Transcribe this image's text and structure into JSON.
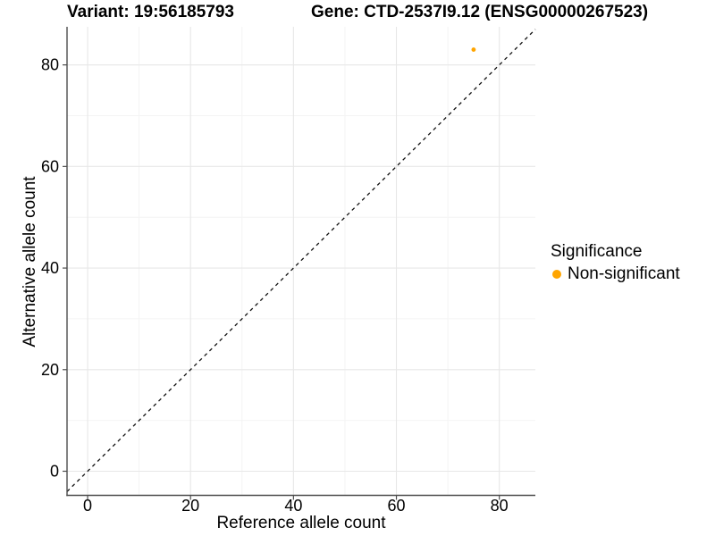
{
  "header": {
    "variant_title": "Variant: 19:56185793",
    "gene_title": "Gene: CTD-2537I9.12 (ENSG00000267523)"
  },
  "legend": {
    "title": "Significance",
    "items": [
      {
        "label": "Non-significant",
        "color": "#FFA500",
        "marker": "dot"
      }
    ]
  },
  "chart_data": {
    "type": "scatter",
    "title": "Variant: 19:56185793  /  Gene: CTD-2537I9.12 (ENSG00000267523)",
    "xlabel": "Reference allele count",
    "ylabel": "Alternative allele count",
    "xlim": [
      -4,
      87
    ],
    "ylim": [
      -4.75,
      87.5
    ],
    "xticks": [
      0,
      20,
      40,
      60,
      80
    ],
    "yticks": [
      0,
      20,
      40,
      60,
      80
    ],
    "x_minor_gridlines": [
      10,
      30,
      50,
      70
    ],
    "y_minor_gridlines": [
      10,
      30,
      50,
      70
    ],
    "grid": "major and minor gridlines, light gray, white panel background",
    "legend_position": "right-center",
    "series": [
      {
        "name": "Non-significant",
        "color": "#FFA500",
        "marker": "circle",
        "points": [
          {
            "x": 75,
            "y": 83
          }
        ]
      }
    ],
    "identity_line": {
      "equation": "y = x",
      "style": "dashed",
      "color": "#111111"
    },
    "colors": {
      "grid_major": "#E7E7E7",
      "grid_minor": "#F4F4F4",
      "axis_line": "#4D4D4D",
      "tick_label": "#000000",
      "point": "#FFA500"
    }
  }
}
